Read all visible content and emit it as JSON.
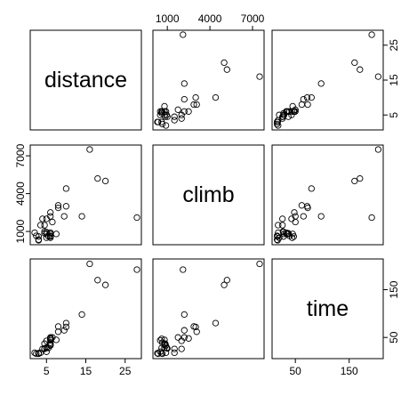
{
  "chart_data": {
    "type": "scatter",
    "subtype": "pairs-matrix",
    "variables": [
      "distance",
      "climb",
      "time"
    ],
    "ranges": {
      "distance": [
        2,
        28
      ],
      "climb": [
        300,
        7500
      ],
      "time": [
        15,
        205
      ]
    },
    "axes": {
      "distance": {
        "side": "bottom",
        "ticks": [
          5,
          15,
          25
        ],
        "tick_labels": [
          "5",
          "15",
          "25"
        ]
      },
      "climb": {
        "sides": [
          "top",
          "left"
        ],
        "ticks": [
          1000,
          4000,
          7000
        ],
        "tick_labels": [
          "1000",
          "4000",
          "7000"
        ]
      },
      "time": {
        "sides": [
          "bottom",
          "right"
        ],
        "ticks": [
          50,
          150
        ],
        "tick_labels": [
          "50",
          "150"
        ]
      }
    },
    "right_axis_distance": {
      "ticks": [
        5,
        15,
        25
      ],
      "tick_labels": [
        "5",
        "15",
        "25"
      ]
    },
    "grid": false,
    "observations": [
      {
        "distance": 2.4,
        "climb": 650,
        "time": 16
      },
      {
        "distance": 6.0,
        "climb": 2500,
        "time": 48
      },
      {
        "distance": 6.0,
        "climb": 900,
        "time": 33
      },
      {
        "distance": 7.5,
        "climb": 800,
        "time": 45
      },
      {
        "distance": 8.0,
        "climb": 3070,
        "time": 62
      },
      {
        "distance": 8.0,
        "climb": 2866,
        "time": 73
      },
      {
        "distance": 16.0,
        "climb": 7500,
        "time": 204
      },
      {
        "distance": 6.0,
        "climb": 800,
        "time": 36
      },
      {
        "distance": 5.0,
        "climb": 800,
        "time": 29
      },
      {
        "distance": 6.0,
        "climb": 650,
        "time": 39
      },
      {
        "distance": 28.0,
        "climb": 2100,
        "time": 192
      },
      {
        "distance": 5.0,
        "climb": 2000,
        "time": 43
      },
      {
        "distance": 9.5,
        "climb": 2200,
        "time": 65
      },
      {
        "distance": 6.0,
        "climb": 500,
        "time": 44
      },
      {
        "distance": 4.5,
        "climb": 1500,
        "time": 26
      },
      {
        "distance": 10.0,
        "climb": 3000,
        "time": 72
      },
      {
        "distance": 14.0,
        "climb": 2200,
        "time": 98
      },
      {
        "distance": 3.0,
        "climb": 350,
        "time": 16
      },
      {
        "distance": 4.5,
        "climb": 1000,
        "time": 27
      },
      {
        "distance": 5.5,
        "climb": 600,
        "time": 28
      },
      {
        "distance": 3.0,
        "climb": 300,
        "time": 17
      },
      {
        "distance": 3.5,
        "climb": 1500,
        "time": 18
      },
      {
        "distance": 6.0,
        "climb": 2200,
        "time": 50
      },
      {
        "distance": 2.0,
        "climb": 900,
        "time": 18
      },
      {
        "distance": 3.0,
        "climb": 600,
        "time": 17
      },
      {
        "distance": 4.0,
        "climb": 2000,
        "time": 26
      },
      {
        "distance": 6.0,
        "climb": 800,
        "time": 34
      },
      {
        "distance": 5.0,
        "climb": 950,
        "time": 28
      },
      {
        "distance": 6.5,
        "climb": 1750,
        "time": 50
      },
      {
        "distance": 5.0,
        "climb": 500,
        "time": 20
      },
      {
        "distance": 10.0,
        "climb": 4400,
        "time": 80
      },
      {
        "distance": 6.0,
        "climb": 600,
        "time": 47
      },
      {
        "distance": 18.0,
        "climb": 5200,
        "time": 170
      },
      {
        "distance": 4.5,
        "climb": 850,
        "time": 37
      },
      {
        "distance": 20.0,
        "climb": 5000,
        "time": 160
      }
    ]
  }
}
